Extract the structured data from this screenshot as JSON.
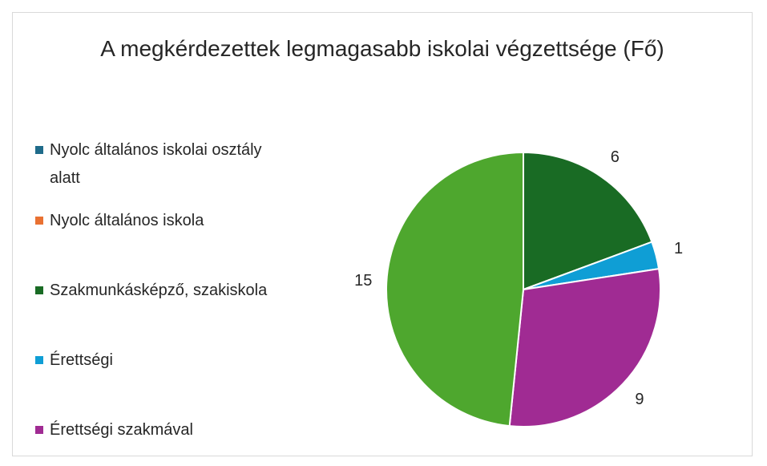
{
  "chart_data": {
    "type": "pie",
    "title": "A megkérdezettek legmagasabb iskolai végzettsége (Fő)",
    "categories": [
      "Nyolc általános iskolai osztály alatt",
      "Nyolc általános iskola",
      "Szakmunkásképző, szakiskola",
      "Érettségi",
      "Érettségi szakmával",
      null
    ],
    "values": [
      0,
      0,
      6,
      1,
      9,
      15
    ],
    "colors": [
      "#1f6b8a",
      "#e97132",
      "#196b24",
      "#0f9ed5",
      "#a02b93",
      "#4ea72e"
    ],
    "legend": "left"
  }
}
